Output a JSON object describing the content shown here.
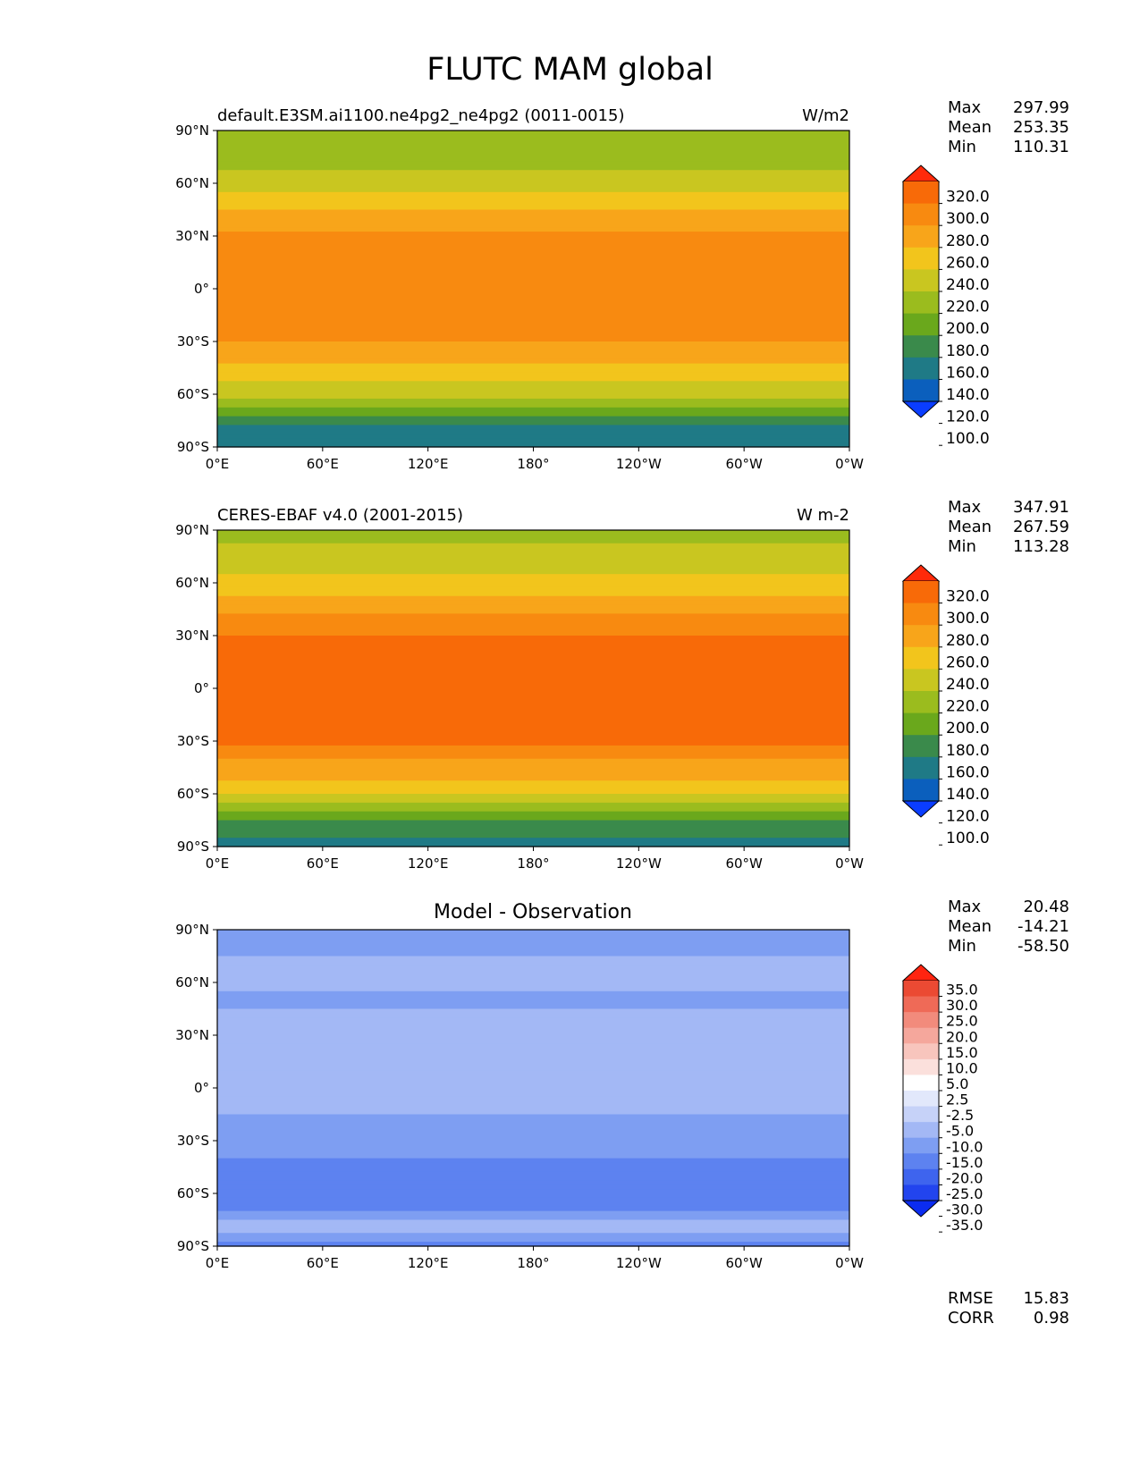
{
  "figure": {
    "title": "FLUTC MAM global"
  },
  "colors": {
    "abs_levels": [
      "#0a3dff",
      "#0b5fbd",
      "#1f7a86",
      "#3a8a4b",
      "#6aa81c",
      "#9bbc1e",
      "#c9c620",
      "#f2c51c",
      "#f8a51a",
      "#f88a10",
      "#f86a08",
      "#ff2a0a"
    ],
    "diff_levels": [
      "#0b2cf0",
      "#2244ee",
      "#3e64ee",
      "#5d82f0",
      "#7e9ef2",
      "#a3b8f5",
      "#c6d2f8",
      "#e2e8fb",
      "#ffffff",
      "#fbe0dc",
      "#f8c5bd",
      "#f5a79c",
      "#f28b7c",
      "#ef6a57",
      "#eb4a33",
      "#ff2410"
    ]
  },
  "chart_data": [
    {
      "type": "heatmap",
      "panel": "test",
      "title_left": "default.E3SM.ai1100.ne4pg2_ne4pg2 (0011-0015)",
      "title_right": "W/m2",
      "stats": {
        "max_label": "Max",
        "max": "297.99",
        "mean_label": "Mean",
        "mean": "253.35",
        "min_label": "Min",
        "min": "110.31"
      },
      "x_ticks": [
        "0°E",
        "60°E",
        "120°E",
        "180°",
        "120°W",
        "60°W",
        "0°W"
      ],
      "y_ticks": [
        "90°N",
        "60°N",
        "30°N",
        "0°",
        "30°S",
        "60°S",
        "90°S"
      ],
      "xlim": [
        0,
        360
      ],
      "ylim": [
        -90,
        90
      ],
      "colorbar_labels": [
        "320.0",
        "300.0",
        "280.0",
        "260.0",
        "240.0",
        "220.0",
        "200.0",
        "180.0",
        "160.0",
        "140.0",
        "120.0",
        "100.0"
      ],
      "zonal_mean": [
        [
          -90,
          120
        ],
        [
          -80,
          135
        ],
        [
          -70,
          170
        ],
        [
          -60,
          205
        ],
        [
          -50,
          225
        ],
        [
          -40,
          245
        ],
        [
          -30,
          262
        ],
        [
          -15,
          270
        ],
        [
          0,
          272
        ],
        [
          15,
          270
        ],
        [
          30,
          262
        ],
        [
          45,
          240
        ],
        [
          55,
          222
        ],
        [
          65,
          205
        ],
        [
          75,
          190
        ],
        [
          90,
          180
        ]
      ]
    },
    {
      "type": "heatmap",
      "panel": "reference",
      "title_left": "CERES-EBAF v4.0 (2001-2015)",
      "title_right": "W m-2",
      "stats": {
        "max_label": "Max",
        "max": "347.91",
        "mean_label": "Mean",
        "mean": "267.59",
        "min_label": "Min",
        "min": "113.28"
      },
      "x_ticks": [
        "0°E",
        "60°E",
        "120°E",
        "180°",
        "120°W",
        "60°W",
        "0°W"
      ],
      "y_ticks": [
        "90°N",
        "60°N",
        "30°N",
        "0°",
        "30°S",
        "60°S",
        "90°S"
      ],
      "xlim": [
        0,
        360
      ],
      "ylim": [
        -90,
        90
      ],
      "colorbar_labels": [
        "320.0",
        "300.0",
        "280.0",
        "260.0",
        "240.0",
        "220.0",
        "200.0",
        "180.0",
        "160.0",
        "140.0",
        "120.0",
        "100.0"
      ],
      "zonal_mean": [
        [
          -90,
          135
        ],
        [
          -80,
          145
        ],
        [
          -70,
          175
        ],
        [
          -60,
          220
        ],
        [
          -50,
          245
        ],
        [
          -40,
          262
        ],
        [
          -30,
          285
        ],
        [
          -15,
          290
        ],
        [
          0,
          285
        ],
        [
          15,
          290
        ],
        [
          30,
          280
        ],
        [
          45,
          255
        ],
        [
          55,
          235
        ],
        [
          65,
          220
        ],
        [
          75,
          205
        ],
        [
          90,
          195
        ]
      ]
    },
    {
      "type": "heatmap",
      "panel": "difference",
      "title_center": "Model - Observation",
      "stats": {
        "max_label": "Max",
        "max": "20.48",
        "mean_label": "Mean",
        "mean": "-14.21",
        "min_label": "Min",
        "min": "-58.50"
      },
      "x_ticks": [
        "0°E",
        "60°E",
        "120°E",
        "180°",
        "120°W",
        "60°W",
        "0°W"
      ],
      "y_ticks": [
        "90°N",
        "60°N",
        "30°N",
        "0°",
        "30°S",
        "60°S",
        "90°S"
      ],
      "xlim": [
        0,
        360
      ],
      "ylim": [
        -90,
        90
      ],
      "colorbar_labels": [
        "35.0",
        "30.0",
        "25.0",
        "20.0",
        "15.0",
        "10.0",
        "5.0",
        "2.5",
        "-2.5",
        "-5.0",
        "-10.0",
        "-15.0",
        "-20.0",
        "-25.0",
        "-30.0",
        "-35.0"
      ],
      "zonal_mean": [
        [
          -90,
          -25
        ],
        [
          -80,
          -10
        ],
        [
          -70,
          -20
        ],
        [
          -60,
          -25
        ],
        [
          -50,
          -20
        ],
        [
          -40,
          -20
        ],
        [
          -30,
          -18
        ],
        [
          -15,
          -15
        ],
        [
          0,
          -10
        ],
        [
          15,
          -15
        ],
        [
          30,
          -12
        ],
        [
          45,
          -15
        ],
        [
          55,
          -15
        ],
        [
          65,
          -12
        ],
        [
          75,
          -15
        ],
        [
          90,
          -20
        ]
      ],
      "fit": {
        "rmse_label": "RMSE",
        "rmse": "15.83",
        "corr_label": "CORR",
        "corr": "0.98"
      }
    }
  ]
}
